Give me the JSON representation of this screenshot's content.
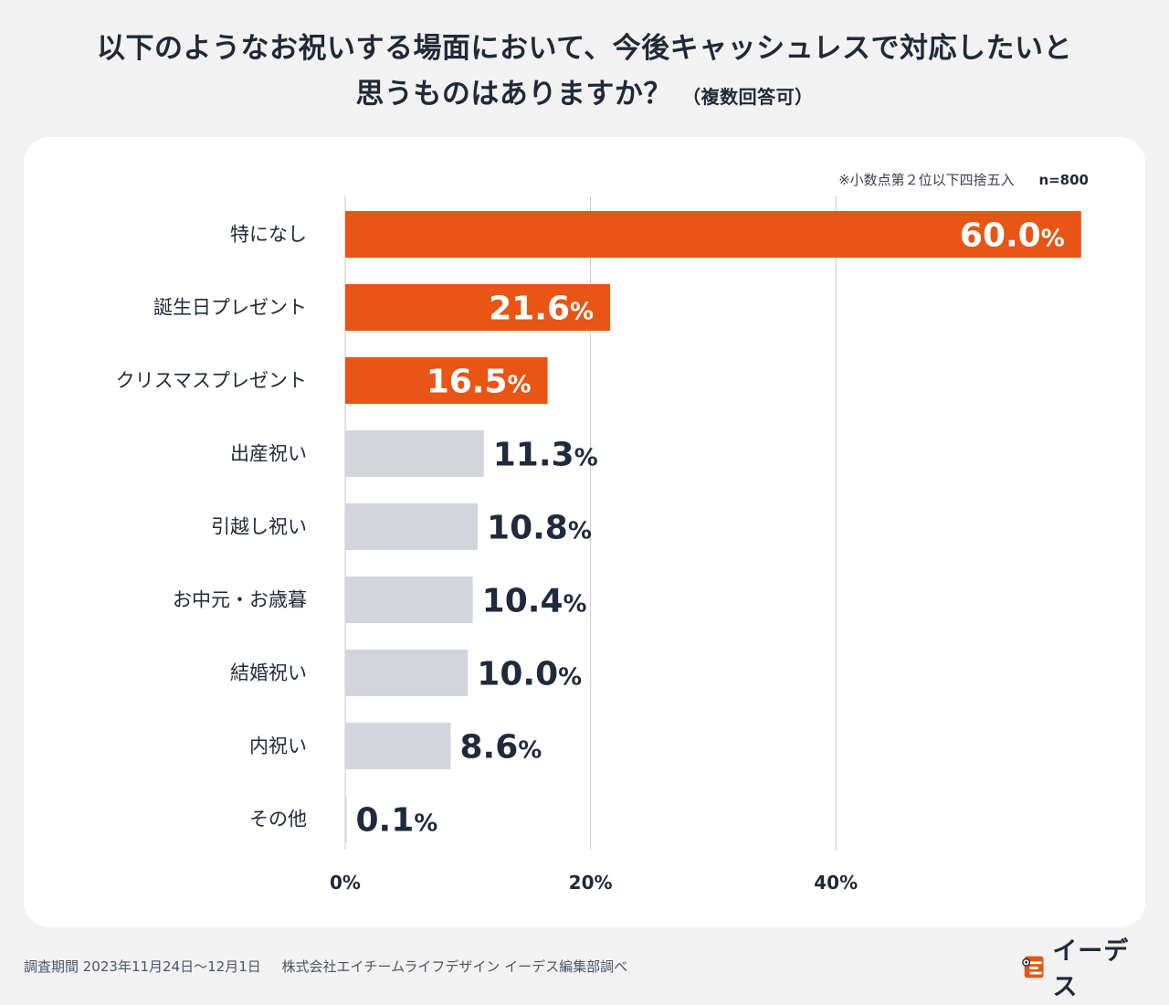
{
  "title": {
    "line1": "以下のようなお祝いする場面において、今後キャッシュレスで対応したいと",
    "line2": "思うものはありますか？",
    "suffix": "（複数回答可）"
  },
  "note": {
    "rounding": "※小数点第２位以下四捨五入",
    "sample": "n=800"
  },
  "colors": {
    "highlight": "#e85514",
    "neutral": "#d2d5db",
    "highlight_text": "#ffffff",
    "neutral_text": "#1f2a3c",
    "grid": "#c8c8c8"
  },
  "chart_data": {
    "type": "bar",
    "orientation": "horizontal",
    "categories": [
      "特になし",
      "誕生日プレゼント",
      "クリスマスプレゼント",
      "出産祝い",
      "引越し祝い",
      "お中元・お歳暮",
      "結婚祝い",
      "内祝い",
      "その他"
    ],
    "values": [
      60.0,
      21.6,
      16.5,
      11.3,
      10.8,
      10.4,
      10.0,
      8.6,
      0.1
    ],
    "labels": [
      "60.0",
      "21.6",
      "16.5",
      "11.3",
      "10.8",
      "10.4",
      "10.0",
      "8.6",
      "0.1"
    ],
    "unit": "%",
    "highlighted": [
      true,
      true,
      true,
      false,
      false,
      false,
      false,
      false,
      false
    ],
    "xlim": [
      0,
      60
    ],
    "ticks": [
      0,
      20,
      40
    ],
    "tick_labels": [
      "0%",
      "20%",
      "40%"
    ],
    "grid": true
  },
  "footer": {
    "period": "調査期間 2023年11月24日〜12月1日",
    "company": "株式会社エイチームライフデザイン イーデス編集部調べ"
  },
  "logo": {
    "text": "イーデス",
    "icon": "edes-logo-icon"
  }
}
